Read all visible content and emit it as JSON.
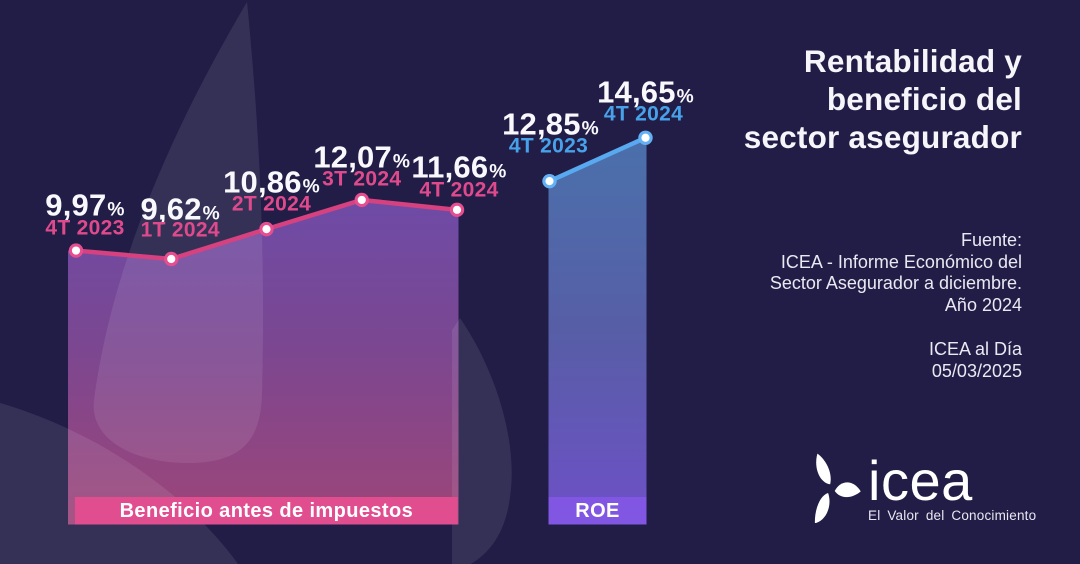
{
  "header": {
    "title": "Rentabilidad y\nbeneficio del\nsector asegurador"
  },
  "source": {
    "text": "Fuente:\nICEA - Informe Económico del\nSector Asegurador a diciembre.\nAño 2024",
    "issue": "ICEA al Día\n05/03/2025"
  },
  "logo": {
    "wordmark": "icea",
    "tagline": "El Valor del Conocimiento"
  },
  "colors": {
    "background": "#211d46",
    "watermark": "rgba(255,255,255,0.09)",
    "value_text": "#f9f8fd",
    "title_text": "#f6f5fa"
  },
  "chart_data": {
    "type": "area",
    "title": "Rentabilidad y beneficio del sector asegurador",
    "unit": "%",
    "value_axis": {
      "visible": false,
      "implied_range": [
        9.0,
        15.5
      ]
    },
    "grid": false,
    "legend_position": "bottom-bars",
    "series": [
      {
        "name": "Beneficio antes de impuestos",
        "line_color": "#d64180",
        "dot_ring_color": "#e54e8f",
        "label_color": "#df4a8c",
        "bar_color": "#e14e90",
        "area_top": "#6e4ba6",
        "area_mid": "#7b4791",
        "area_bottom": "#9d4578",
        "points": [
          {
            "quarter": "4T 2023",
            "value": 9.97,
            "display": "9,97"
          },
          {
            "quarter": "1T 2024",
            "value": 9.62,
            "display": "9,62"
          },
          {
            "quarter": "2T 2024",
            "value": 10.86,
            "display": "10,86"
          },
          {
            "quarter": "3T 2024",
            "value": 12.07,
            "display": "12,07"
          },
          {
            "quarter": "4T 2024",
            "value": 11.66,
            "display": "11,66"
          }
        ]
      },
      {
        "name": "ROE",
        "line_color": "#58a9f0",
        "dot_ring_color": "#63b0f4",
        "label_color": "#47a2e9",
        "bar_color": "#8156e2",
        "area_top": "#4a70ab",
        "area_mid": "#575ea6",
        "area_bottom": "#6e50c7",
        "points": [
          {
            "quarter": "4T 2023",
            "value": 12.85,
            "display": "12,85"
          },
          {
            "quarter": "4T 2024",
            "value": 14.65,
            "display": "14,65"
          }
        ]
      }
    ]
  }
}
